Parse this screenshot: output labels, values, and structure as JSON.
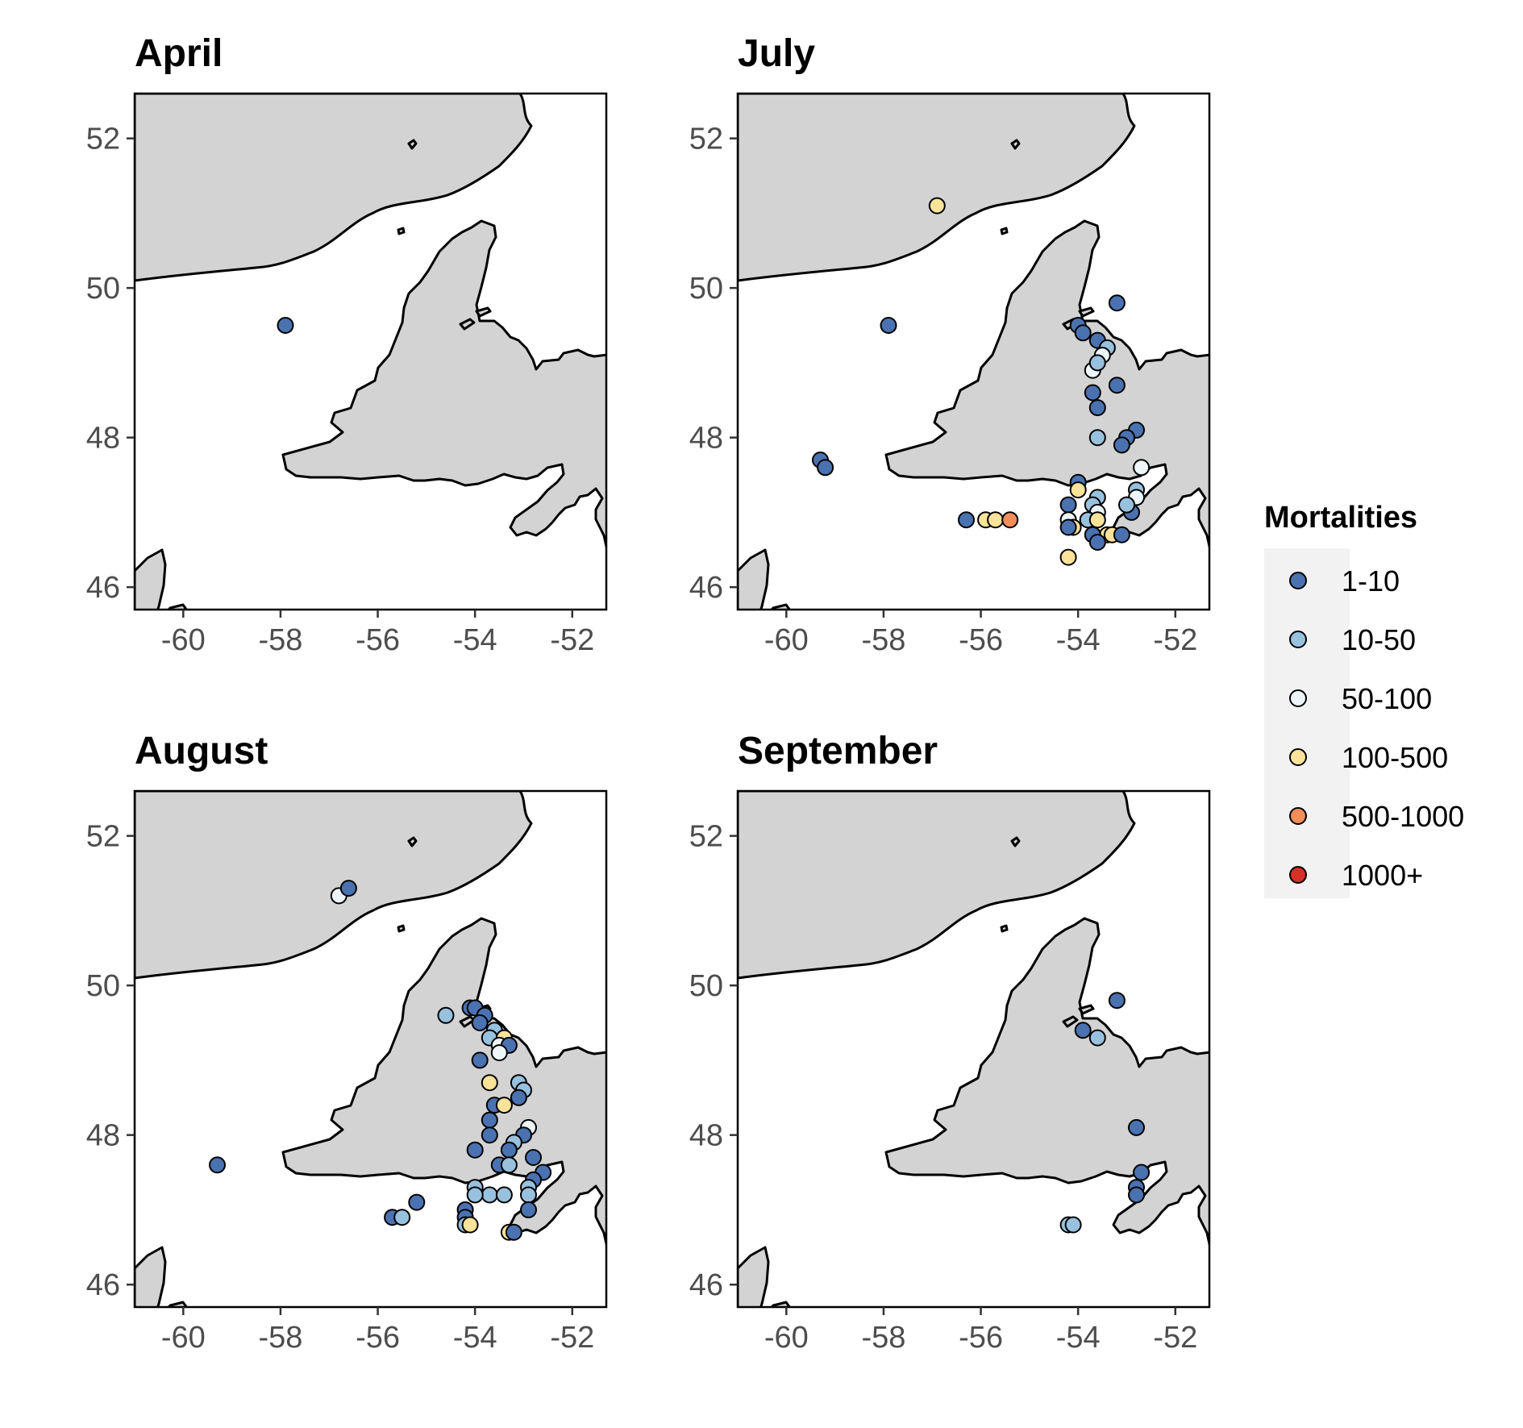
{
  "chart_data": {
    "type": "scatter",
    "panels": [
      {
        "title": "April",
        "points": [
          [
            -57.9,
            49.5,
            "1-10"
          ]
        ]
      },
      {
        "title": "July",
        "points": [
          [
            -56.9,
            51.1,
            "100-500"
          ],
          [
            -57.9,
            49.5,
            "1-10"
          ],
          [
            -59.3,
            47.7,
            "1-10"
          ],
          [
            -59.2,
            47.6,
            "1-10"
          ],
          [
            -53.2,
            49.8,
            "1-10"
          ],
          [
            -54.0,
            49.5,
            "1-10"
          ],
          [
            -53.9,
            49.4,
            "1-10"
          ],
          [
            -53.6,
            49.3,
            "1-10"
          ],
          [
            -53.4,
            49.2,
            "10-50"
          ],
          [
            -53.5,
            49.1,
            "50-100"
          ],
          [
            -53.7,
            48.9,
            "50-100"
          ],
          [
            -53.6,
            49.0,
            "10-50"
          ],
          [
            -53.2,
            48.7,
            "1-10"
          ],
          [
            -53.7,
            48.6,
            "1-10"
          ],
          [
            -53.6,
            48.4,
            "1-10"
          ],
          [
            -53.6,
            48.0,
            "10-50"
          ],
          [
            -52.8,
            48.1,
            "1-10"
          ],
          [
            -53.0,
            48.0,
            "1-10"
          ],
          [
            -53.1,
            47.9,
            "1-10"
          ],
          [
            -52.7,
            47.6,
            "50-100"
          ],
          [
            -52.8,
            47.3,
            "10-50"
          ],
          [
            -52.8,
            47.2,
            "50-100"
          ],
          [
            -52.9,
            47.0,
            "1-10"
          ],
          [
            -53.0,
            47.1,
            "10-50"
          ],
          [
            -54.0,
            47.4,
            "1-10"
          ],
          [
            -54.0,
            47.3,
            "100-500"
          ],
          [
            -54.2,
            47.1,
            "1-10"
          ],
          [
            -53.6,
            47.2,
            "10-50"
          ],
          [
            -53.7,
            47.1,
            "10-50"
          ],
          [
            -53.6,
            47.0,
            "50-100"
          ],
          [
            -53.8,
            46.9,
            "10-50"
          ],
          [
            -54.2,
            46.9,
            "50-100"
          ],
          [
            -53.6,
            46.9,
            "100-500"
          ],
          [
            -54.1,
            46.8,
            "100-500"
          ],
          [
            -53.4,
            46.7,
            "100-500"
          ],
          [
            -53.3,
            46.7,
            "100-500"
          ],
          [
            -53.7,
            46.7,
            "1-10"
          ],
          [
            -53.1,
            46.7,
            "1-10"
          ],
          [
            -53.6,
            46.6,
            "1-10"
          ],
          [
            -54.2,
            46.4,
            "100-500"
          ],
          [
            -54.2,
            46.8,
            "1-10"
          ],
          [
            -56.3,
            46.9,
            "1-10"
          ],
          [
            -55.9,
            46.9,
            "100-500"
          ],
          [
            -55.7,
            46.9,
            "100-500"
          ],
          [
            -55.4,
            46.9,
            "500-1000"
          ]
        ]
      },
      {
        "title": "August",
        "points": [
          [
            -56.8,
            51.2,
            "50-100"
          ],
          [
            -56.6,
            51.3,
            "1-10"
          ],
          [
            -59.3,
            47.6,
            "1-10"
          ],
          [
            -54.6,
            49.6,
            "10-50"
          ],
          [
            -54.1,
            49.7,
            "1-10"
          ],
          [
            -54.0,
            49.7,
            "1-10"
          ],
          [
            -53.8,
            49.6,
            "1-10"
          ],
          [
            -53.9,
            49.5,
            "1-10"
          ],
          [
            -53.6,
            49.4,
            "10-50"
          ],
          [
            -53.7,
            49.3,
            "10-50"
          ],
          [
            -53.4,
            49.3,
            "100-500"
          ],
          [
            -53.5,
            49.2,
            "50-100"
          ],
          [
            -53.3,
            49.2,
            "1-10"
          ],
          [
            -53.5,
            49.1,
            "50-100"
          ],
          [
            -53.9,
            49.0,
            "1-10"
          ],
          [
            -53.7,
            48.7,
            "100-500"
          ],
          [
            -53.1,
            48.7,
            "10-50"
          ],
          [
            -53.0,
            48.6,
            "10-50"
          ],
          [
            -53.1,
            48.5,
            "1-10"
          ],
          [
            -53.6,
            48.4,
            "1-10"
          ],
          [
            -53.4,
            48.4,
            "100-500"
          ],
          [
            -53.7,
            48.2,
            "1-10"
          ],
          [
            -52.9,
            48.1,
            "50-100"
          ],
          [
            -53.7,
            48.0,
            "1-10"
          ],
          [
            -53.0,
            48.0,
            "1-10"
          ],
          [
            -53.2,
            47.9,
            "10-50"
          ],
          [
            -54.0,
            47.8,
            "1-10"
          ],
          [
            -53.3,
            47.8,
            "1-10"
          ],
          [
            -52.8,
            47.7,
            "1-10"
          ],
          [
            -53.5,
            47.6,
            "1-10"
          ],
          [
            -53.3,
            47.6,
            "10-50"
          ],
          [
            -52.6,
            47.5,
            "1-10"
          ],
          [
            -52.8,
            47.4,
            "1-10"
          ],
          [
            -54.0,
            47.3,
            "10-50"
          ],
          [
            -52.9,
            47.3,
            "10-50"
          ],
          [
            -53.7,
            47.2,
            "10-50"
          ],
          [
            -53.4,
            47.2,
            "10-50"
          ],
          [
            -54.0,
            47.2,
            "10-50"
          ],
          [
            -52.9,
            47.2,
            "10-50"
          ],
          [
            -54.2,
            47.0,
            "1-10"
          ],
          [
            -52.9,
            47.0,
            "1-10"
          ],
          [
            -54.2,
            46.9,
            "1-10"
          ],
          [
            -54.2,
            46.8,
            "10-50"
          ],
          [
            -54.1,
            46.8,
            "100-500"
          ],
          [
            -53.3,
            46.7,
            "100-500"
          ],
          [
            -53.2,
            46.7,
            "1-10"
          ],
          [
            -55.7,
            46.9,
            "1-10"
          ],
          [
            -55.5,
            46.9,
            "10-50"
          ],
          [
            -55.2,
            47.1,
            "1-10"
          ]
        ]
      },
      {
        "title": "September",
        "points": [
          [
            -53.2,
            49.8,
            "1-10"
          ],
          [
            -53.9,
            49.4,
            "1-10"
          ],
          [
            -53.6,
            49.3,
            "10-50"
          ],
          [
            -52.8,
            48.1,
            "1-10"
          ],
          [
            -52.7,
            47.5,
            "1-10"
          ],
          [
            -52.8,
            47.3,
            "1-10"
          ],
          [
            -52.8,
            47.2,
            "1-10"
          ],
          [
            -54.2,
            46.8,
            "10-50"
          ],
          [
            -54.1,
            46.8,
            "10-50"
          ]
        ]
      }
    ],
    "x_ticks": [
      "-60",
      "-58",
      "-56",
      "-54",
      "-52"
    ],
    "y_ticks": [
      "46",
      "48",
      "50",
      "52"
    ],
    "xlim": [
      -61,
      -51.3
    ],
    "ylim": [
      45.7,
      52.6
    ],
    "legend": {
      "title": "Mortalities",
      "position": "right",
      "categories": [
        "1-10",
        "10-50",
        "50-100",
        "100-500",
        "500-1000",
        "1000+"
      ],
      "colors": [
        "#4a72b0",
        "#98c1de",
        "#ecf6f9",
        "#fbe39a",
        "#f18e5a",
        "#d73027"
      ]
    },
    "land_color": "#d3d3d3",
    "background": "#ffffff"
  }
}
